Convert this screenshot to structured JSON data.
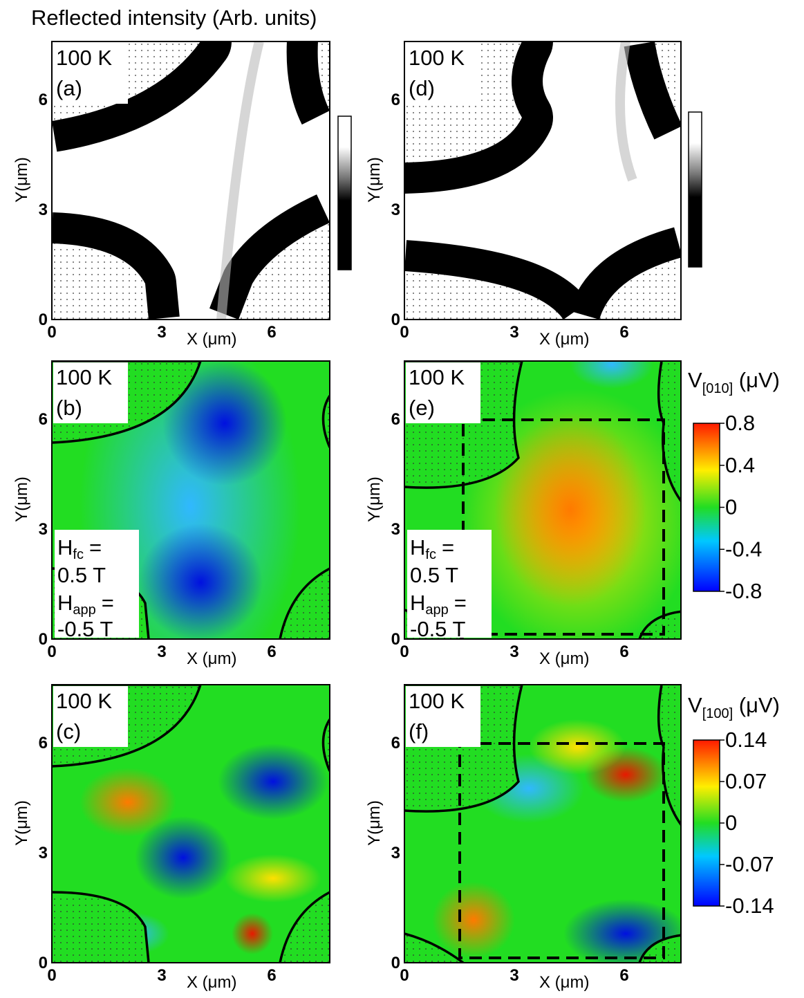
{
  "title": "Reflected intensity (Arb. units)",
  "axes": {
    "xlabel": "X (μm)",
    "ylabel": "Y(μm)",
    "xticks": [
      "0",
      "3",
      "6"
    ],
    "yticks": [
      "6",
      "3",
      "0"
    ]
  },
  "temperature": "100 K",
  "panels": [
    {
      "label": "(a)"
    },
    {
      "label": "(b)"
    },
    {
      "label": "(c)"
    },
    {
      "label": "(d)"
    },
    {
      "label": "(e)"
    },
    {
      "label": "(f)"
    }
  ],
  "field": {
    "symbol": "H",
    "fc": "fc",
    "app": "app",
    "eq": "=",
    "fc_value": "0.5 T",
    "app_value": "-0.5 T"
  },
  "colorbars": [
    {
      "name": "V",
      "sub": "[010]",
      "unit": " (μV)",
      "ticks": [
        "0.8",
        "0.4",
        "0",
        "-0.4",
        "-0.8"
      ]
    },
    {
      "name": "V",
      "sub": "[100]",
      "unit": " (μV)",
      "ticks": [
        "0.14",
        "0.07",
        "0",
        "-0.07",
        "-0.14"
      ]
    }
  ]
}
